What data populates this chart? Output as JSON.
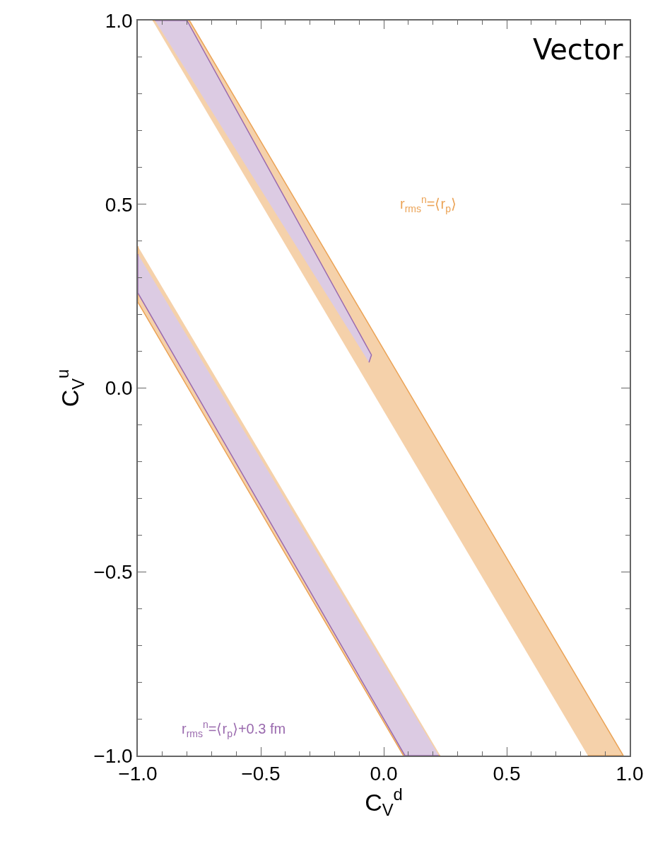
{
  "chart_data": {
    "type": "area",
    "xlabel": "C$_{V}$$^{d}$",
    "ylabel": "C$_{V}$$^{u}$",
    "xlim": [
      -1,
      1
    ],
    "ylim": [
      -1,
      1
    ],
    "xticks": [
      {
        "value": -1,
        "label": "−1.0"
      },
      {
        "value": -0.5,
        "label": "−0.5"
      },
      {
        "value": 0,
        "label": "0.0"
      },
      0.5,
      {
        "value": 1,
        "label": "1.0"
      }
    ],
    "yticks": [
      {
        "value": -1,
        "label": "−1.0"
      },
      {
        "value": -0.5,
        "label": "−0.5"
      },
      {
        "value": 0,
        "label": "0.0"
      },
      0.5,
      {
        "value": 1,
        "label": "1.0"
      }
    ],
    "series": [
      {
        "color": "#eba356",
        "x": [
          -0.94,
          -0.79,
          0.974,
          0.83
        ],
        "values": [
          1,
          1,
          -1,
          -1
        ]
      },
      {
        "color": "#eba356",
        "x": [
          -1,
          -1,
          0.08,
          0.23
        ],
        "values": [
          0.386,
          0.234,
          -1,
          -1
        ]
      },
      {
        "color": "#9a6aae",
        "x": [
          -0.93,
          -0.8,
          -0.05,
          -0.06
        ],
        "values": [
          1,
          1,
          0.09,
          0.07
        ]
      },
      {
        "color": "#9a6aae",
        "x": [
          -1,
          -1,
          0.086,
          0.224
        ],
        "values": [
          0.365,
          0.259,
          -1,
          -1
        ]
      }
    ],
    "annotations": [
      {
        "text": "Vector"
      },
      "r$_{rms}$$^{n}$=⟨r$_{p}$⟩",
      "r$_{rms}$$^{n}$=⟨r$_{p}$⟩+0.3 fm"
    ]
  }
}
